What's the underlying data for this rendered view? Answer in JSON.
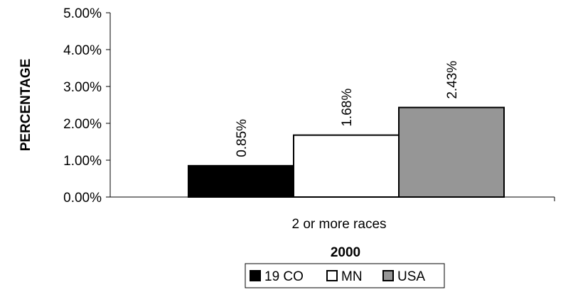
{
  "chart_data": {
    "type": "bar",
    "title": "",
    "ylabel": "PERCENTAGE",
    "xlabel": "2000",
    "categories": [
      "2 or more races"
    ],
    "series": [
      {
        "name": "19 CO",
        "values": [
          0.85
        ],
        "color": "#000000"
      },
      {
        "name": "MN",
        "values": [
          1.68
        ],
        "color": "#ffffff"
      },
      {
        "name": "USA",
        "values": [
          2.43
        ],
        "color": "#969696"
      }
    ],
    "data_labels": [
      "0.85%",
      "1.68%",
      "2.43%"
    ],
    "ylim": [
      0,
      5
    ],
    "yticks": [
      0,
      1,
      2,
      3,
      4,
      5
    ],
    "ytick_labels": [
      "0.00%",
      "1.00%",
      "2.00%",
      "3.00%",
      "4.00%",
      "5.00%"
    ],
    "grid": false,
    "legend": "bottom"
  }
}
